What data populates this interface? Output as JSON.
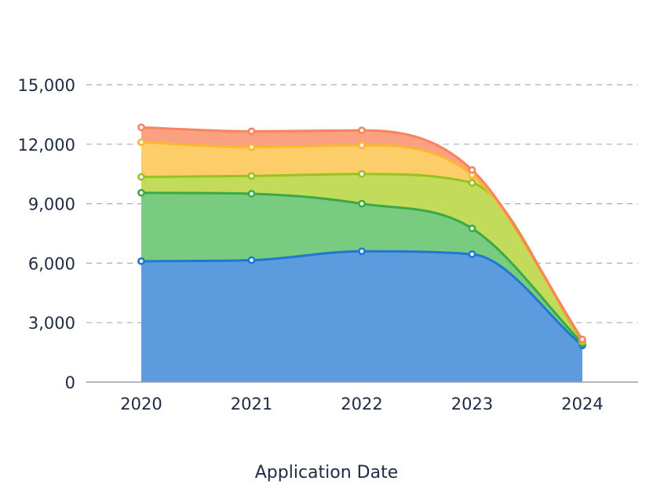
{
  "chart_data": {
    "type": "area",
    "stacked": true,
    "categories": [
      "2020",
      "2021",
      "2022",
      "2023",
      "2024"
    ],
    "xlabel": "Application Date",
    "ylabel": "",
    "ylim": [
      0,
      15000
    ],
    "yticks": [
      0,
      3000,
      6000,
      9000,
      12000,
      15000
    ],
    "ytick_labels": [
      "0",
      "3,000",
      "6,000",
      "9,000",
      "12,000",
      "15,000"
    ],
    "grid": "horizontal dashed",
    "legend": "none",
    "smooth": true,
    "series": [
      {
        "values": [
          6100,
          6150,
          6600,
          6450,
          1850
        ],
        "color": "#5b9bde",
        "line_color": "#1f78d1"
      },
      {
        "values": [
          3450,
          3350,
          2400,
          1300,
          100
        ],
        "color": "#79cc7f",
        "line_color": "#3aa948"
      },
      {
        "values": [
          800,
          900,
          1500,
          2300,
          100
        ],
        "color": "#c3db5a",
        "line_color": "#98c21f"
      },
      {
        "values": [
          1750,
          1450,
          1450,
          400,
          50
        ],
        "color": "#fdcd6a",
        "line_color": "#f9b92e"
      },
      {
        "values": [
          750,
          800,
          750,
          250,
          50
        ],
        "color": "#fca082",
        "line_color": "#f7845f"
      }
    ]
  }
}
